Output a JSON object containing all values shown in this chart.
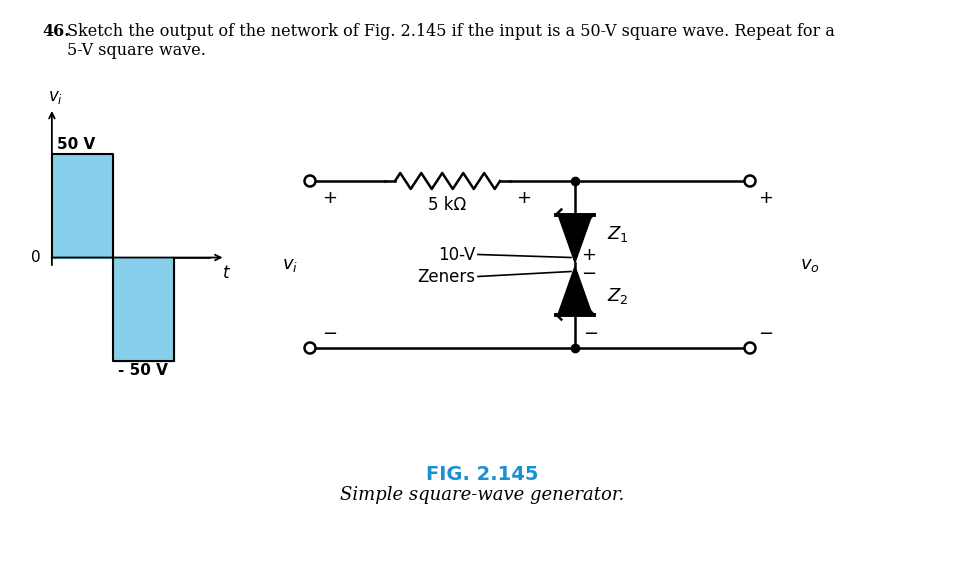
{
  "title_number": "46.",
  "title_text": "Sketch the output of the network of Fig. 2.145 if the input is a 50-V square wave. Repeat for a\n    5-V square wave.",
  "fig_label": "FIG. 2.145",
  "fig_label_color": "#1B8FD4",
  "fig_caption": "Simple square-wave generator.",
  "resistor_label": "5 kΩ",
  "zener_label_line1": "10-V",
  "zener_label_line2": "Zeners",
  "z1_label": "Z",
  "z1_sub": "1",
  "z2_label": "Z",
  "z2_sub": "2",
  "vi_label": "v",
  "vi_sub": "i",
  "vo_label": "v",
  "vo_sub": "o",
  "vi_axis": "v",
  "vi_axis_sub": "i",
  "t_label": "t",
  "zero_label": "0",
  "plus_50V_label": "50 V",
  "neg_50V_label": "- 50 V",
  "square_wave_color": "#87CEEB",
  "background_color": "#ffffff",
  "lc": "#000000",
  "plus_color": "#000000",
  "minus_color": "#000000"
}
